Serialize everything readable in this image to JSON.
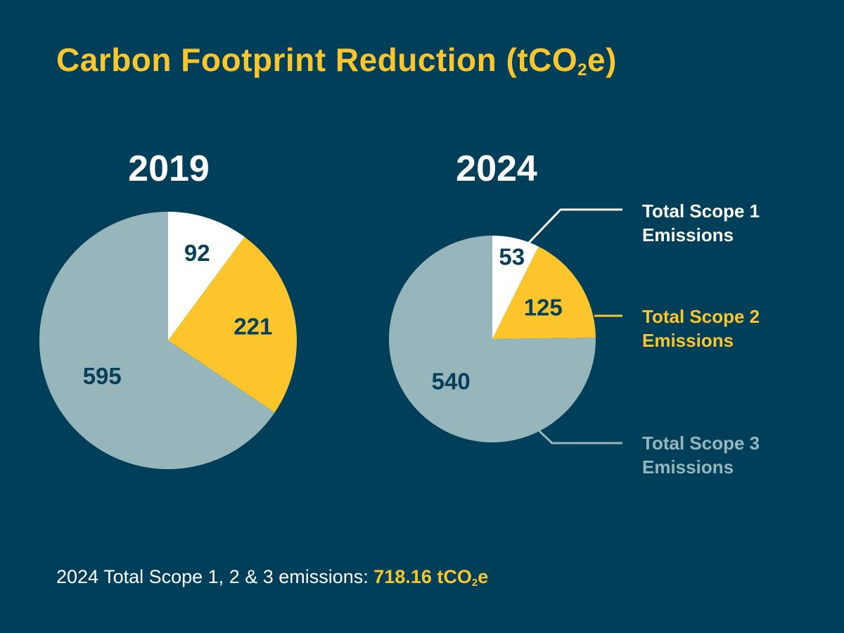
{
  "title": {
    "main": "Carbon Footprint Reduction (tCO",
    "sub": "2",
    "end": "e)"
  },
  "colors": {
    "background": "#003f5a",
    "accent": "#fbc52b",
    "scope1": "#ffffff",
    "scope2": "#fbc52b",
    "scope3": "#97b6bc",
    "label": "#063f5a"
  },
  "chart_data": [
    {
      "type": "pie",
      "title": "2019",
      "categories": [
        "Total Scope 1 Emissions",
        "Total Scope 2 Emissions",
        "Total Scope 3 Emissions"
      ],
      "values": [
        92,
        221,
        595
      ]
    },
    {
      "type": "pie",
      "title": "2024",
      "categories": [
        "Total Scope 1 Emissions",
        "Total Scope 2 Emissions",
        "Total Scope 3 Emissions"
      ],
      "values": [
        53,
        125,
        540
      ],
      "legend": "right"
    }
  ],
  "legend": [
    {
      "line1": "Total Scope 1",
      "line2": "Emissions",
      "color": "#ffffff"
    },
    {
      "line1": "Total Scope 2",
      "line2": "Emissions",
      "color": "#fbc52b"
    },
    {
      "line1": "Total Scope 3",
      "line2": "Emissions",
      "color": "#97b6bc"
    }
  ],
  "footer": {
    "text": "2024 Total Scope 1, 2 & 3 emissions: ",
    "value": "718.16 tCO",
    "value_sub": "2",
    "value_end": "e"
  }
}
